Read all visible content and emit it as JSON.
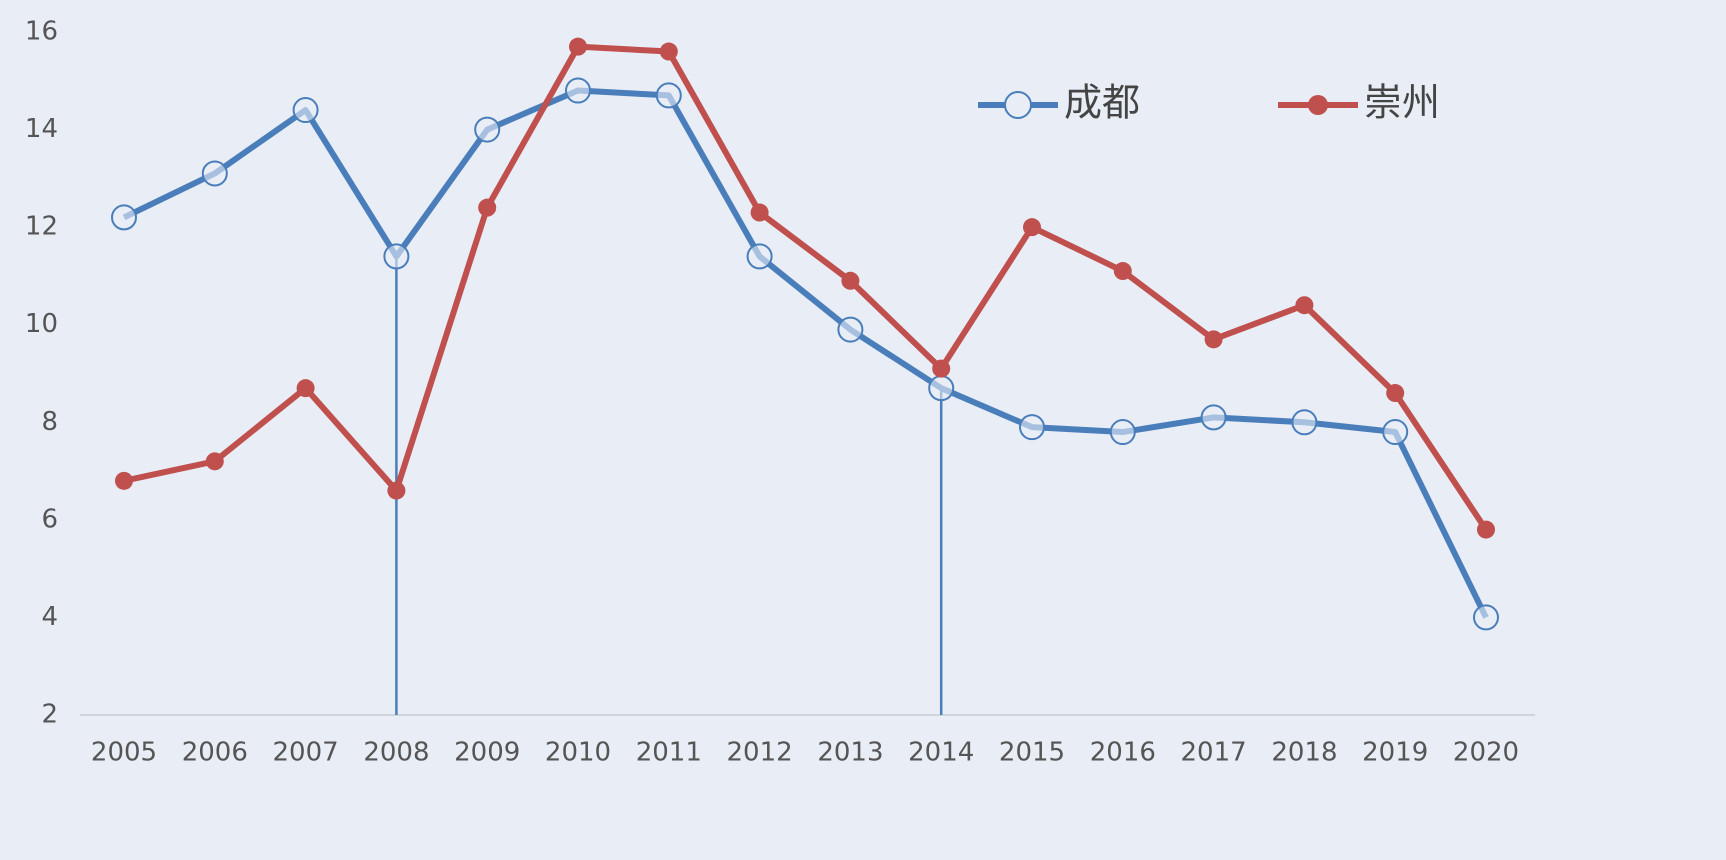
{
  "chart_data": {
    "type": "line",
    "categories": [
      "2005",
      "2006",
      "2007",
      "2008",
      "2009",
      "2010",
      "2011",
      "2012",
      "2013",
      "2014",
      "2015",
      "2016",
      "2017",
      "2018",
      "2019",
      "2020"
    ],
    "series": [
      {
        "name": "成都",
        "color": "#4a7ebb",
        "marker": "open-circle",
        "values": [
          12.2,
          13.1,
          14.4,
          11.4,
          14.0,
          14.8,
          14.7,
          11.4,
          9.9,
          8.7,
          7.9,
          7.8,
          8.1,
          8.0,
          7.8,
          4.0
        ]
      },
      {
        "name": "崇州",
        "color": "#c0504d",
        "marker": "filled-circle",
        "values": [
          6.8,
          7.2,
          8.7,
          6.6,
          12.4,
          15.7,
          15.6,
          12.3,
          10.9,
          9.1,
          12.0,
          11.1,
          9.7,
          10.4,
          8.6,
          5.8
        ]
      }
    ],
    "drop_lines": [
      "2008",
      "2014"
    ],
    "ylim": [
      2,
      16
    ],
    "yticks": [
      2,
      4,
      6,
      8,
      10,
      12,
      14,
      16
    ],
    "grid": false,
    "legend": "top-right"
  }
}
